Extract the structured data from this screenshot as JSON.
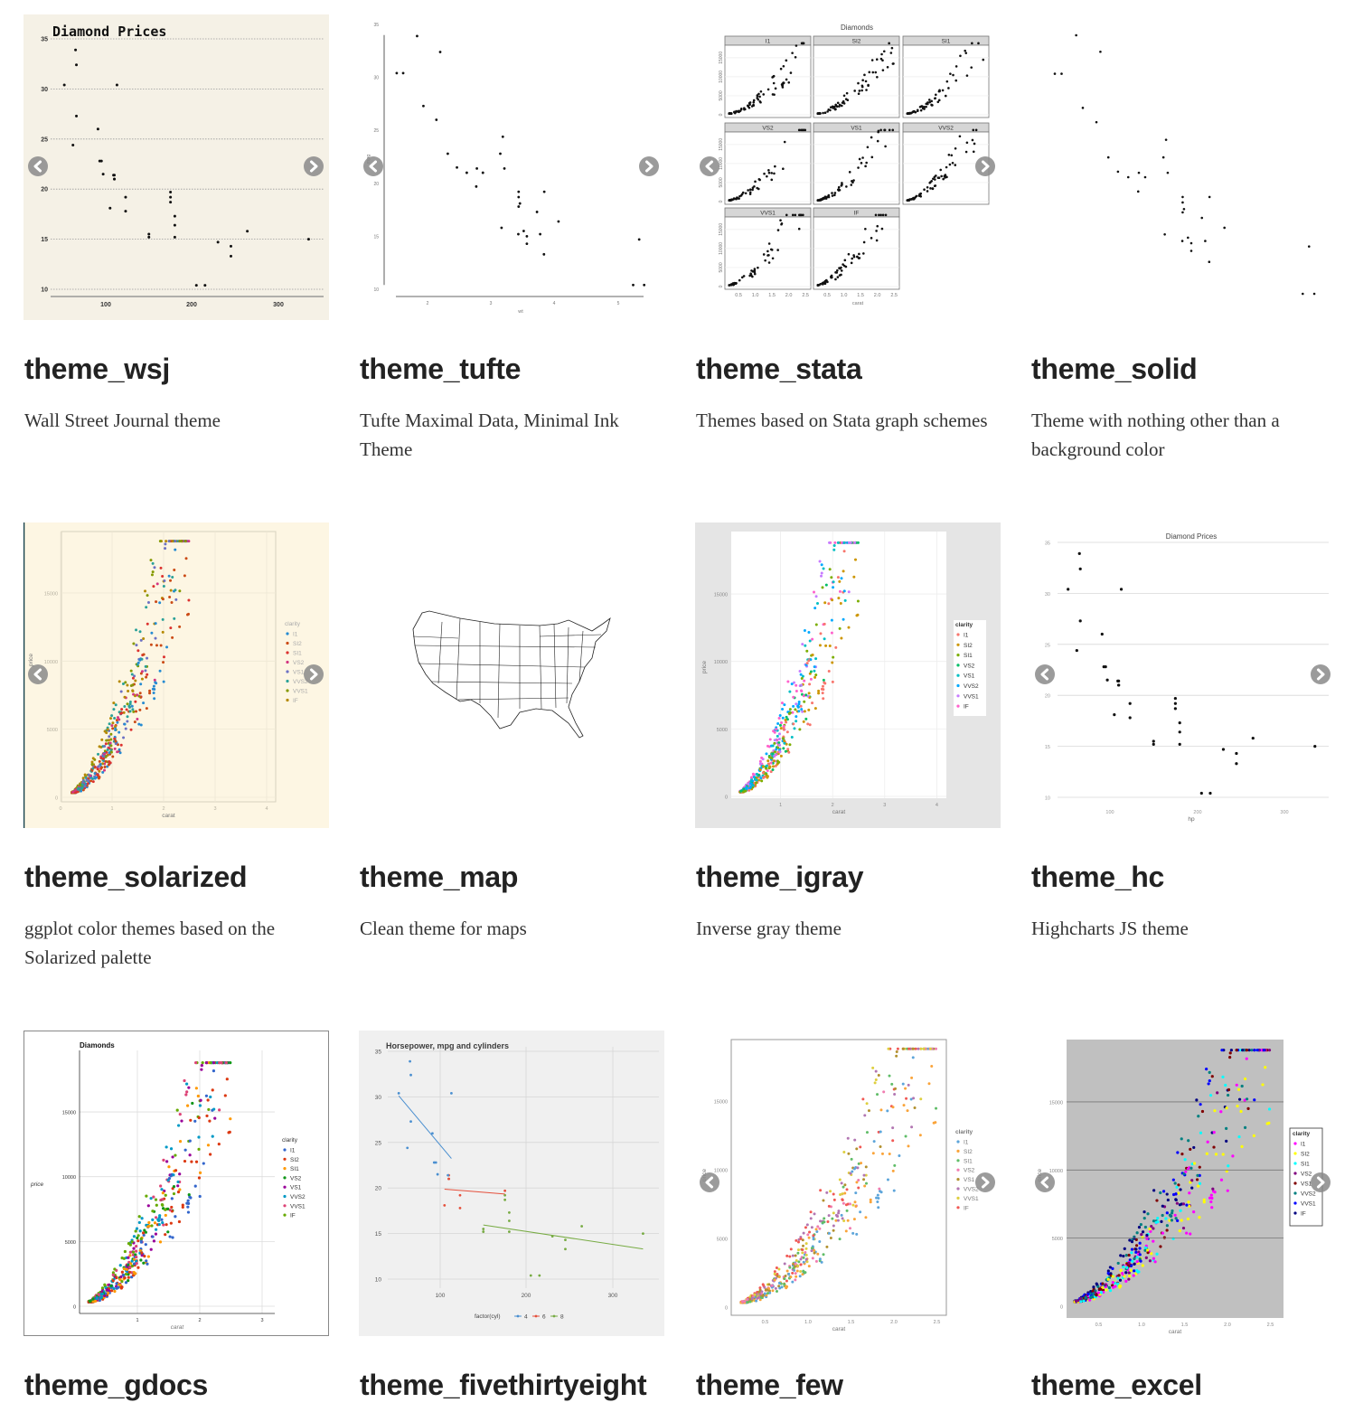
{
  "cards": [
    {
      "name": "theme_wsj",
      "description": "Wall Street Journal theme",
      "thumb": {
        "title": "Diamond Prices",
        "bg": "#f5f1e6",
        "xticks": [
          "100",
          "200",
          "300"
        ],
        "yticks": [
          "10",
          "15",
          "20",
          "25",
          "30",
          "35"
        ],
        "nav": true
      }
    },
    {
      "name": "theme_tufte",
      "description": "Tufte Maximal Data, Minimal Ink Theme",
      "thumb": {
        "bg": "#ffffff",
        "xticks": [
          "2",
          "3",
          "4",
          "5"
        ],
        "yticks": [
          "10",
          "15",
          "20",
          "25",
          "30",
          "35"
        ],
        "xlabel": "wt",
        "ylabel": "mpg",
        "nav": true
      }
    },
    {
      "name": "theme_stata",
      "description": "Themes based on Stata graph schemes",
      "thumb": {
        "title": "Diamonds",
        "bg": "#ffffff",
        "facets": [
          "I1",
          "SI2",
          "SI1",
          "VS2",
          "VS1",
          "VVS2",
          "VVS1",
          "IF"
        ],
        "xticks": [
          "0.5",
          "1.0",
          "1.5",
          "2.0",
          "2.5"
        ],
        "yticks": [
          "0",
          "5000",
          "10000",
          "15000"
        ],
        "xlabel": "carat",
        "ylabel": "price",
        "nav": true
      }
    },
    {
      "name": "theme_solid",
      "description": "Theme with nothing other than a background color",
      "thumb": {
        "bg": "#ffffff",
        "nav": false
      }
    },
    {
      "name": "theme_solarized",
      "description": "ggplot color themes based on the Solarized palette",
      "thumb": {
        "bg": "#fdf6e3",
        "xticks": [
          "0",
          "1",
          "2",
          "3",
          "4"
        ],
        "yticks": [
          "0",
          "5000",
          "10000",
          "15000"
        ],
        "xlabel": "carat",
        "ylabel": "price",
        "legend_title": "clarity",
        "legend": [
          "I1",
          "SI2",
          "SI1",
          "VS2",
          "VS1",
          "VVS2",
          "VVS1",
          "IF"
        ],
        "colors": [
          "#268bd2",
          "#cb4b16",
          "#dc322f",
          "#d33682",
          "#6c71c4",
          "#2aa198",
          "#859900",
          "#b58900"
        ],
        "nav": true
      }
    },
    {
      "name": "theme_map",
      "description": "Clean theme for maps",
      "thumb": {
        "bg": "#ffffff",
        "nav": false
      }
    },
    {
      "name": "theme_igray",
      "description": "Inverse gray theme",
      "thumb": {
        "bg": "#e5e5e5",
        "xticks": [
          "1",
          "2",
          "3",
          "4"
        ],
        "yticks": [
          "0",
          "5000",
          "10000",
          "15000"
        ],
        "xlabel": "carat",
        "ylabel": "price",
        "legend_title": "clarity",
        "legend": [
          "I1",
          "SI2",
          "SI1",
          "VS2",
          "VS1",
          "VVS2",
          "VVS1",
          "IF"
        ],
        "colors": [
          "#F8766D",
          "#CD9600",
          "#7CAE00",
          "#00BE67",
          "#00BFC4",
          "#00A9FF",
          "#C77CFF",
          "#FF61CC"
        ],
        "nav": false
      }
    },
    {
      "name": "theme_hc",
      "description": "Highcharts JS theme",
      "thumb": {
        "title": "Diamond Prices",
        "bg": "#ffffff",
        "xticks": [
          "100",
          "200",
          "300"
        ],
        "yticks": [
          "10",
          "15",
          "20",
          "25",
          "30",
          "35"
        ],
        "xlabel": "hp",
        "nav": true
      }
    },
    {
      "name": "theme_gdocs",
      "description": "",
      "thumb": {
        "title": "Diamonds",
        "bg": "#ffffff",
        "xticks": [
          "1",
          "2",
          "3"
        ],
        "yticks": [
          "0",
          "5000",
          "10000",
          "15000"
        ],
        "xlabel": "carat",
        "ylabel": "price",
        "legend_title": "clarity",
        "legend": [
          "I1",
          "SI2",
          "SI1",
          "VS2",
          "VS1",
          "VVS2",
          "VVS1",
          "IF"
        ],
        "colors": [
          "#3366cc",
          "#dc3912",
          "#ff9900",
          "#109618",
          "#990099",
          "#0099c6",
          "#dd4477",
          "#66aa00"
        ],
        "nav": false
      }
    },
    {
      "name": "theme_fivethirtyeight",
      "description": "",
      "thumb": {
        "title": "Horsepower, mpg and cylinders",
        "bg": "#f0f0f0",
        "xticks": [
          "100",
          "200",
          "300"
        ],
        "yticks": [
          "10",
          "15",
          "20",
          "25",
          "30",
          "35"
        ],
        "legend_title": "factor(cyl)",
        "legend": [
          "4",
          "6",
          "8"
        ],
        "colors": [
          "#4a8fd0",
          "#e5503c",
          "#77ab43"
        ],
        "nav": false
      }
    },
    {
      "name": "theme_few",
      "description": "",
      "thumb": {
        "bg": "#ffffff",
        "xticks": [
          "0.5",
          "1.0",
          "1.5",
          "2.0",
          "2.5"
        ],
        "yticks": [
          "0",
          "5000",
          "10000",
          "15000"
        ],
        "xlabel": "carat",
        "ylabel": "price",
        "legend_title": "clarity",
        "legend": [
          "I1",
          "SI2",
          "SI1",
          "VS2",
          "VS1",
          "VVS2",
          "VVS1",
          "IF"
        ],
        "colors": [
          "#5da5da",
          "#faa43a",
          "#60bd68",
          "#f17cb0",
          "#b2912f",
          "#b276b2",
          "#decf3f",
          "#f15854"
        ],
        "nav": true
      }
    },
    {
      "name": "theme_excel",
      "description": "",
      "thumb": {
        "bg": "#ffffff",
        "xticks": [
          "0.5",
          "1.0",
          "1.5",
          "2.0",
          "2.5"
        ],
        "yticks": [
          "0",
          "5000",
          "10000",
          "15000"
        ],
        "xlabel": "carat",
        "ylabel": "price",
        "legend_title": "clarity",
        "legend": [
          "I1",
          "SI2",
          "SI1",
          "VS2",
          "VS1",
          "VVS2",
          "VVS1",
          "IF"
        ],
        "colors": [
          "#ff00ff",
          "#ffff00",
          "#00ffff",
          "#800080",
          "#800000",
          "#008080",
          "#0000ff",
          "#000080"
        ],
        "nav": true
      }
    }
  ],
  "nav_icons": {
    "prev": "chevron-left-icon",
    "next": "chevron-right-icon"
  },
  "chart_data": {
    "type": "scatter",
    "mtcars": {
      "hp": [
        110,
        110,
        93,
        110,
        175,
        105,
        245,
        62,
        95,
        123,
        123,
        180,
        180,
        180,
        205,
        215,
        230,
        66,
        52,
        65,
        97,
        150,
        150,
        245,
        175,
        66,
        91,
        113,
        264,
        175,
        335,
        109
      ],
      "mpg": [
        21,
        21,
        22.8,
        21.4,
        18.7,
        18.1,
        14.3,
        24.4,
        22.8,
        19.2,
        17.8,
        16.4,
        17.3,
        15.2,
        10.4,
        10.4,
        14.7,
        32.4,
        30.4,
        33.9,
        21.5,
        15.5,
        15.2,
        13.3,
        19.2,
        27.3,
        26,
        30.4,
        15.8,
        19.7,
        15,
        21.4
      ],
      "wt": [
        2.62,
        2.875,
        2.32,
        3.215,
        3.44,
        3.46,
        3.57,
        3.19,
        3.15,
        3.44,
        3.44,
        4.07,
        3.73,
        3.78,
        5.25,
        5.424,
        5.345,
        2.2,
        1.615,
        1.835,
        2.465,
        3.52,
        3.435,
        3.84,
        3.845,
        1.935,
        2.14,
        1.513,
        3.17,
        2.77,
        3.57,
        2.78
      ],
      "cyl": [
        6,
        6,
        4,
        6,
        8,
        6,
        8,
        4,
        4,
        6,
        6,
        8,
        8,
        8,
        8,
        8,
        8,
        4,
        4,
        4,
        4,
        8,
        8,
        8,
        8,
        4,
        4,
        4,
        8,
        6,
        8,
        4
      ]
    }
  }
}
